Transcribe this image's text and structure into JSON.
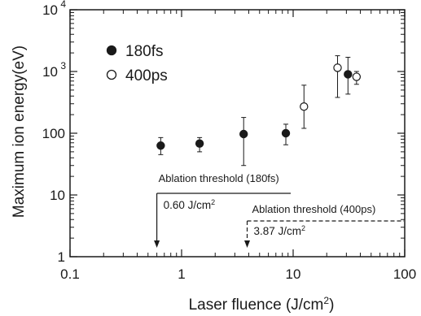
{
  "chart_data": {
    "type": "scatter",
    "title": "",
    "xlabel": {
      "text": "Laser fluence (J/cm",
      "sup": "2",
      "tail": ")"
    },
    "ylabel": "Maximum ion energy(eV)",
    "xscale": "log",
    "yscale": "log",
    "xlim": [
      0.1,
      100
    ],
    "ylim": [
      1,
      10000
    ],
    "x_ticks": [
      {
        "value": 0.1,
        "label": "0.1"
      },
      {
        "value": 1,
        "label": "1"
      },
      {
        "value": 10,
        "label": "10"
      },
      {
        "value": 100,
        "label": "100"
      }
    ],
    "y_ticks": [
      {
        "value": 1,
        "label": "1",
        "sup": ""
      },
      {
        "value": 10,
        "label": "10",
        "sup": ""
      },
      {
        "value": 100,
        "label": "100",
        "sup": ""
      },
      {
        "value": 1000,
        "label": "10",
        "sup": "3"
      },
      {
        "value": 10000,
        "label": "10",
        "sup": "4"
      }
    ],
    "legend_position": "top-left",
    "series": [
      {
        "name": "180fs",
        "marker": "filled-circle",
        "color": "#1a1a1a",
        "points": [
          {
            "x": 0.65,
            "y": 63,
            "y_low": 45,
            "y_high": 85
          },
          {
            "x": 1.45,
            "y": 68,
            "y_low": 50,
            "y_high": 85
          },
          {
            "x": 3.6,
            "y": 97,
            "y_low": 30,
            "y_high": 180
          },
          {
            "x": 8.6,
            "y": 100,
            "y_low": 65,
            "y_high": 140
          },
          {
            "x": 31,
            "y": 900,
            "y_low": 430,
            "y_high": 1700
          }
        ]
      },
      {
        "name": "400ps",
        "marker": "open-circle",
        "color": "#1a1a1a",
        "points": [
          {
            "x": 12.5,
            "y": 270,
            "y_low": 120,
            "y_high": 600
          },
          {
            "x": 25,
            "y": 1150,
            "y_low": 380,
            "y_high": 1800
          },
          {
            "x": 37,
            "y": 820,
            "y_low": 620,
            "y_high": 1000
          }
        ]
      }
    ],
    "annotations": [
      {
        "label": "Ablation threshold (180fs)",
        "value": "0.60 J/cm",
        "value_sup": "2",
        "x": 0.6,
        "line_style": "solid",
        "bracket_to_x": 10
      },
      {
        "label": "Ablation threshold (400ps)",
        "value": "3.87 J/cm",
        "value_sup": "2",
        "x": 3.87,
        "line_style": "dashed",
        "bracket_to_x": 100
      }
    ]
  }
}
